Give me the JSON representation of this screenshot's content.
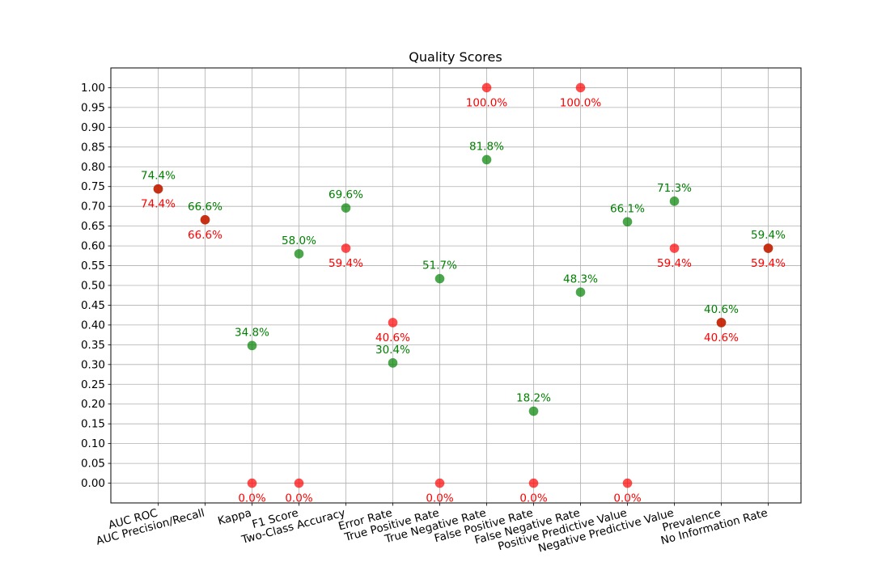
{
  "chart_data": {
    "type": "scatter",
    "title": "Quality Scores",
    "xlabel": "",
    "ylabel": "",
    "ylim": [
      -0.05,
      1.05
    ],
    "y_ticks": [
      "0.00",
      "0.05",
      "0.10",
      "0.15",
      "0.20",
      "0.25",
      "0.30",
      "0.35",
      "0.40",
      "0.45",
      "0.50",
      "0.55",
      "0.60",
      "0.65",
      "0.70",
      "0.75",
      "0.80",
      "0.85",
      "0.90",
      "0.95",
      "1.00"
    ],
    "grid": true,
    "legend": "none",
    "categories": [
      "AUC ROC",
      "AUC Precision/Recall",
      "Kappa",
      "F1 Score",
      "Two-Class Accuracy",
      "Error Rate",
      "True Positive Rate",
      "True Negative Rate",
      "False Positive Rate",
      "False Negative Rate",
      "Positive Predictive Value",
      "Negative Predictive Value",
      "Prevalence",
      "No Information Rate"
    ],
    "series": [
      {
        "color": "#008000",
        "values": [
          0.744,
          0.666,
          0.348,
          0.58,
          0.696,
          0.304,
          0.517,
          0.818,
          0.182,
          0.483,
          0.661,
          0.713,
          0.406,
          0.594
        ],
        "labels": [
          "74.4%",
          "66.6%",
          "34.8%",
          "58.0%",
          "69.6%",
          "30.4%",
          "51.7%",
          "81.8%",
          "18.2%",
          "48.3%",
          "66.1%",
          "71.3%",
          "40.6%",
          "59.4%"
        ]
      },
      {
        "color": "#ff0000",
        "values": [
          0.744,
          0.666,
          0.0,
          0.0,
          0.594,
          0.406,
          0.0,
          1.0,
          0.0,
          1.0,
          0.0,
          0.594,
          0.406,
          0.594
        ],
        "labels": [
          "74.4%",
          "66.6%",
          "0.0%",
          "0.0%",
          "59.4%",
          "40.6%",
          "0.0%",
          "100.0%",
          "0.0%",
          "100.0%",
          "0.0%",
          "59.4%",
          "40.6%",
          "59.4%"
        ]
      }
    ]
  }
}
